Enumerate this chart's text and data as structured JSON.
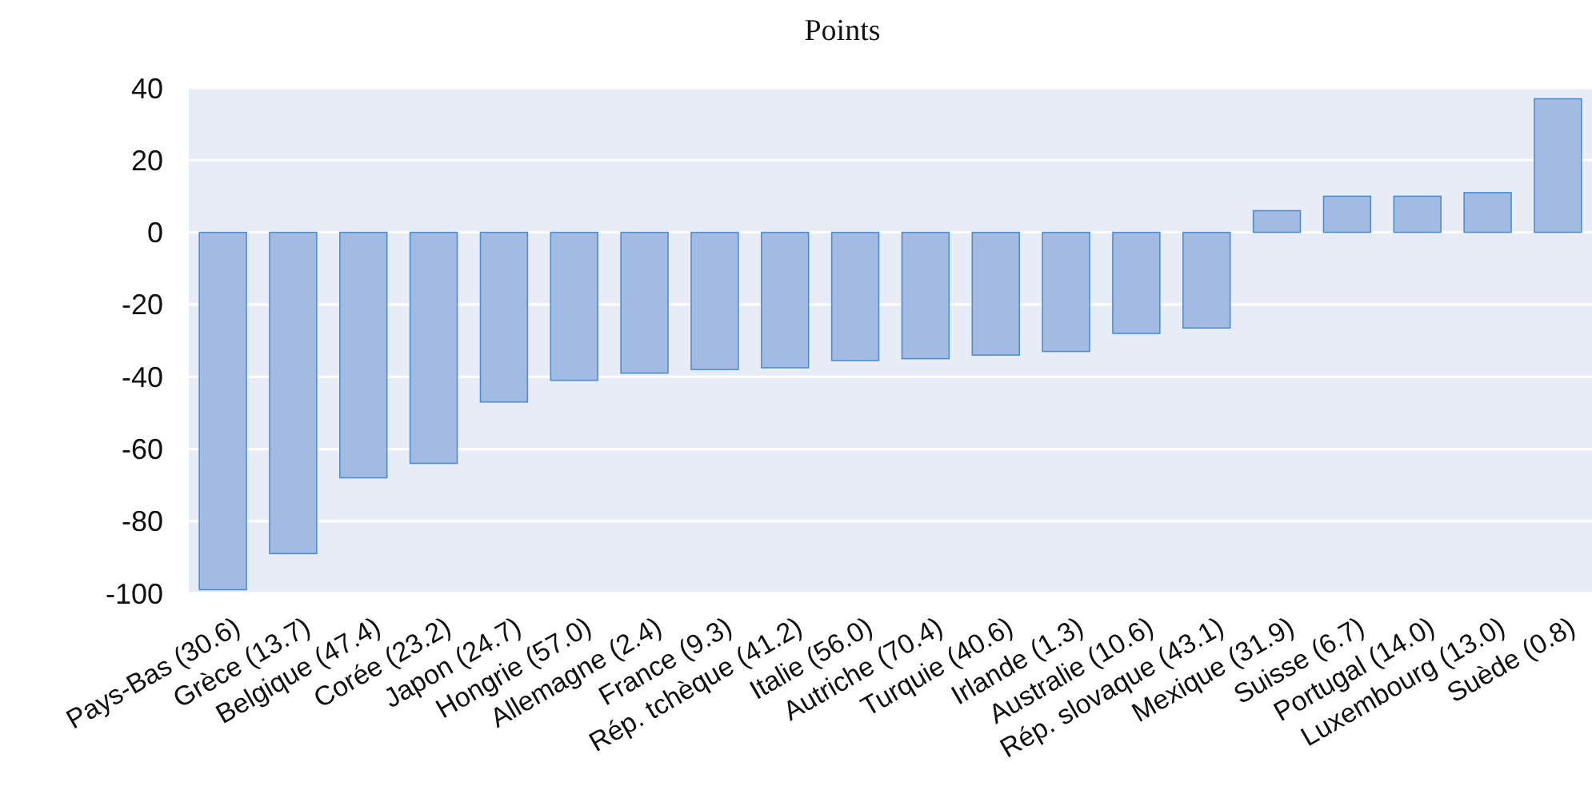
{
  "chart_data": {
    "type": "bar",
    "title": "Points",
    "categories": [
      "Pays-Bas (30.6)",
      "Grèce (13.7)",
      "Belgique (47.4)",
      "Corée (23.2)",
      "Japon (24.7)",
      "Hongrie (57.0)",
      "Allemagne (2.4)",
      "France (9.3)",
      "Rép. tchèque (41.2)",
      "Italie (56.0)",
      "Autriche (70.4)",
      "Turquie (40.6)",
      "Irlande (1.3)",
      "Australie (10.6)",
      "Rép. slovaque (43.1)",
      "Mexique (31.9)",
      "Suisse (6.7)",
      "Portugal (14.0)",
      "Luxembourg (13.0)",
      "Suède (0.8)"
    ],
    "values": [
      -99,
      -89,
      -68,
      -64,
      -47,
      -41,
      -39,
      -38,
      -37.5,
      -35.5,
      -35,
      -34,
      -33,
      -28,
      -26.5,
      6,
      10,
      10,
      11,
      37
    ],
    "color": "#a3bbe3",
    "ylim": [
      -100,
      40
    ],
    "yticks": [
      -100,
      -80,
      -60,
      -40,
      -20,
      0,
      20,
      40
    ],
    "grid": "y"
  }
}
